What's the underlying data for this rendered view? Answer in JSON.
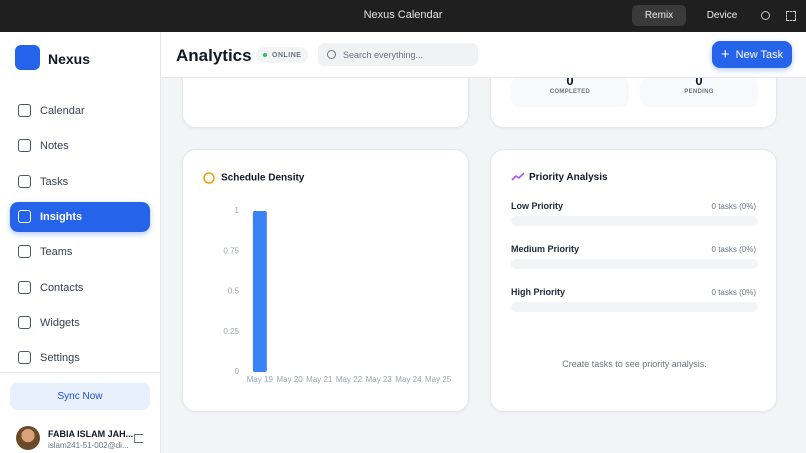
{
  "topbar": {
    "title": "Nexus Calendar",
    "buttons": [
      "Remix",
      "Device"
    ]
  },
  "sidebar": {
    "brand": "Nexus",
    "nav": [
      "Calendar",
      "Notes",
      "Tasks",
      "Insights",
      "Teams",
      "Contacts",
      "Widgets",
      "Settings"
    ],
    "sync": "Sync Now",
    "user": {
      "name": "FABIA ISLAM JAH...",
      "email": "islam241-51-002@di..."
    }
  },
  "header": {
    "title": "Analytics",
    "status": "ONLINE",
    "search": "Search everything...",
    "button": "New Task"
  },
  "stats": [
    {
      "value": "0",
      "label": "COMPLETED"
    },
    {
      "value": "0",
      "label": "PENDING"
    }
  ],
  "chart_data": {
    "type": "bar",
    "title": "Schedule Density",
    "categories": [
      "May 19",
      "May 20",
      "May 21",
      "May 22",
      "May 23",
      "May 24",
      "May 25"
    ],
    "values": [
      1,
      0,
      0,
      0,
      0,
      0,
      0
    ],
    "color": "#3b82f6",
    "ylim": [
      0,
      1
    ],
    "yticks": [
      0,
      0.25,
      0.5,
      0.75,
      1
    ],
    "grid": false
  },
  "priority": {
    "title": "Priority Analysis",
    "rows": [
      {
        "label": "Low Priority",
        "count": "0 tasks (0%)"
      },
      {
        "label": "Medium Priority",
        "count": "0 tasks (0%)"
      },
      {
        "label": "High Priority",
        "count": "0 tasks (0%)"
      }
    ],
    "empty": "Create tasks to see priority analysis."
  }
}
